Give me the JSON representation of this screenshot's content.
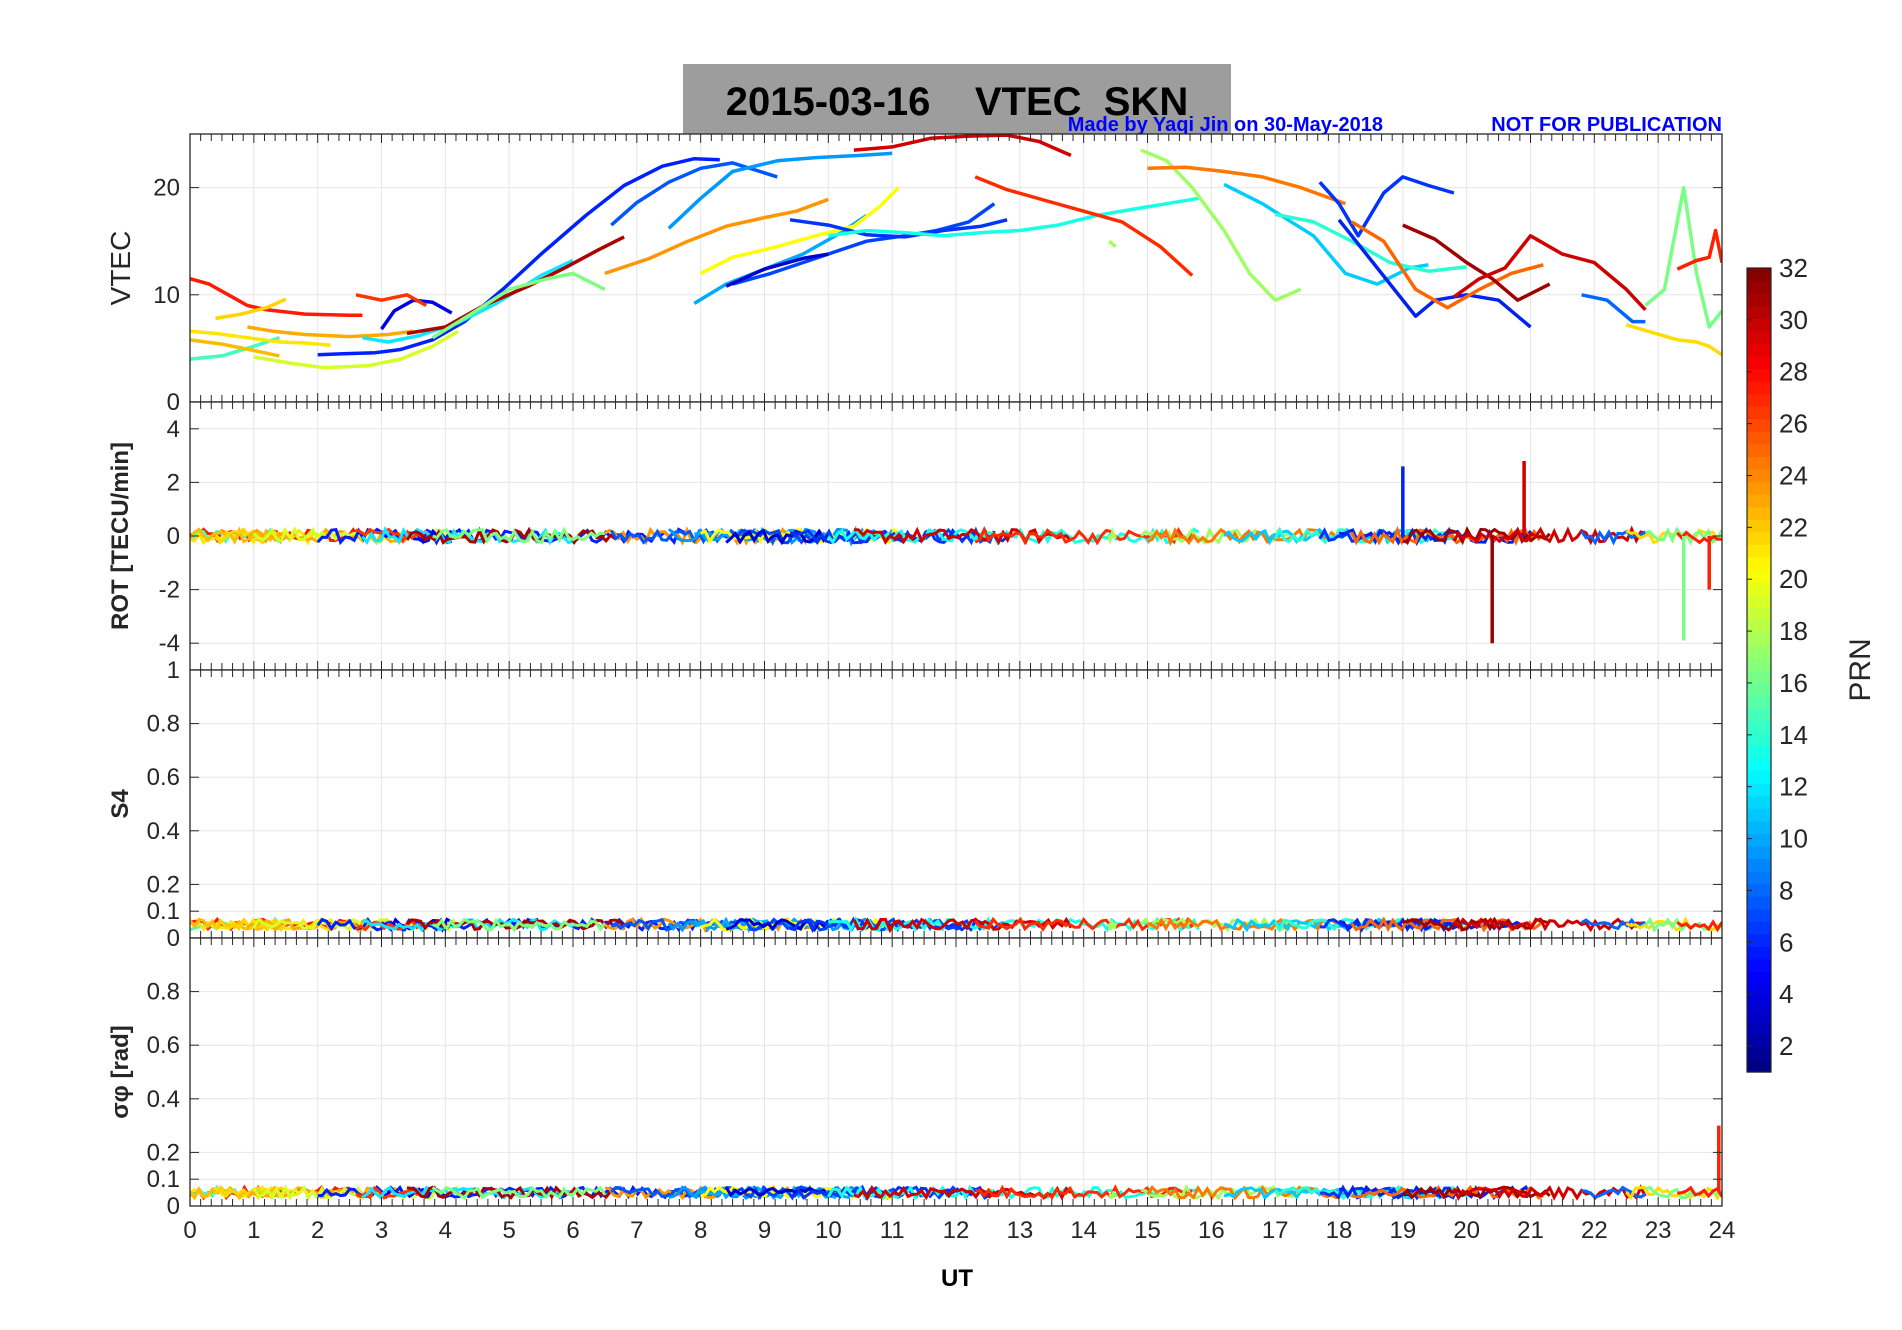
{
  "figure": {
    "title": "2015-03-16    VTEC  SKN",
    "credit": "Made by Yaqi Jin on 30-May-2018",
    "notice": "NOT FOR PUBLICATION",
    "title_bg": "#9d9d9d",
    "credit_color": "#0000ff"
  },
  "chart_data": [
    {
      "type": "line",
      "panel": "VTEC",
      "xlabel": "",
      "ylabel": "VTEC",
      "xlim": [
        0,
        24
      ],
      "ylim": [
        0,
        25
      ],
      "yticks": [
        "0",
        "10",
        "20"
      ],
      "ytick_values": [
        0,
        10,
        20
      ],
      "grid": true,
      "series": [
        {
          "prn": 29,
          "color": "#ff1a00",
          "x": [
            0,
            0.3,
            0.6,
            0.9,
            1.2,
            1.8,
            2.5,
            2.7
          ],
          "y": [
            11.5,
            11,
            10,
            9,
            8.6,
            8.2,
            8.1,
            8.1
          ]
        },
        {
          "prn": 14,
          "color": "#41ffbe",
          "x": [
            0,
            0.5,
            1.0,
            1.4
          ],
          "y": [
            4,
            4.3,
            5.2,
            6
          ]
        },
        {
          "prn": 19,
          "color": "#ffe600",
          "x": [
            0,
            0.4,
            0.9,
            1.4,
            1.8,
            2.2
          ],
          "y": [
            6.6,
            6.4,
            6.0,
            5.6,
            5.5,
            5.3
          ]
        },
        {
          "prn": 21,
          "color": "#ffbb00",
          "x": [
            0,
            0.5,
            1.0,
            1.4
          ],
          "y": [
            5.8,
            5.4,
            4.8,
            4.3
          ]
        },
        {
          "prn": 20,
          "color": "#ffd400",
          "x": [
            0.4,
            0.8,
            1.2,
            1.5
          ],
          "y": [
            7.8,
            8.2,
            8.8,
            9.6
          ]
        },
        {
          "prn": 22,
          "color": "#ffaa00",
          "x": [
            0.9,
            1.3,
            1.8,
            2.5,
            3.1,
            3.5
          ],
          "y": [
            7.0,
            6.6,
            6.3,
            6.1,
            6.3,
            6.6
          ]
        },
        {
          "prn": 18,
          "color": "#d4ff28",
          "x": [
            1.0,
            1.6,
            2.1,
            2.8,
            3.3,
            3.8,
            4.2
          ],
          "y": [
            4.2,
            3.6,
            3.2,
            3.4,
            4.0,
            5.2,
            6.6
          ]
        },
        {
          "prn": 4,
          "color": "#0020ff",
          "x": [
            2.0,
            2.4,
            2.9,
            3.3,
            3.8,
            4.3,
            4.9,
            5.5,
            6.2,
            6.8,
            7.4,
            7.9,
            8.3
          ],
          "y": [
            4.4,
            4.5,
            4.6,
            4.9,
            5.8,
            7.5,
            10.5,
            13.8,
            17.4,
            20.2,
            22.0,
            22.7,
            22.6
          ]
        },
        {
          "prn": 3,
          "color": "#0000e6",
          "x": [
            3.0,
            3.2,
            3.5,
            3.8,
            4.1
          ],
          "y": [
            6.8,
            8.5,
            9.5,
            9.3,
            8.3
          ]
        },
        {
          "prn": 28,
          "color": "#ff3300",
          "x": [
            2.6,
            3.0,
            3.4,
            3.7
          ],
          "y": [
            10.0,
            9.5,
            10.0,
            9.0
          ]
        },
        {
          "prn": 12,
          "color": "#10e6ff",
          "x": [
            2.7,
            3.1,
            3.6,
            4.2,
            4.8,
            5.5,
            6.0
          ],
          "y": [
            6.0,
            5.6,
            6.2,
            7.4,
            9.2,
            11.8,
            13.2
          ]
        },
        {
          "prn": 31,
          "color": "#af0000",
          "x": [
            3.4,
            4.0,
            4.6,
            5.3,
            5.9,
            6.4,
            6.8
          ],
          "y": [
            6.4,
            7.0,
            9.0,
            10.8,
            12.6,
            14.2,
            15.4
          ]
        },
        {
          "prn": 16,
          "color": "#7fff80",
          "x": [
            3.8,
            4.4,
            5.0,
            5.6,
            6.0,
            6.5
          ],
          "y": [
            6.0,
            8.2,
            10.5,
            11.5,
            12.0,
            10.5
          ]
        },
        {
          "prn": 23,
          "color": "#ff9500",
          "x": [
            6.5,
            7.2,
            7.8,
            8.4,
            9.0,
            9.5,
            10.0
          ],
          "y": [
            12.0,
            13.4,
            15.0,
            16.4,
            17.2,
            17.8,
            18.9
          ]
        },
        {
          "prn": 6,
          "color": "#0057ff",
          "x": [
            6.6,
            7.0,
            7.5,
            8.0,
            8.5,
            9.2
          ],
          "y": [
            16.5,
            18.6,
            20.5,
            21.8,
            22.3,
            21.0
          ]
        },
        {
          "prn": 9,
          "color": "#0099ff",
          "x": [
            7.5,
            8.0,
            8.5,
            9.2,
            9.8,
            10.5,
            11.0
          ],
          "y": [
            16.2,
            19.0,
            21.5,
            22.5,
            22.8,
            23.0,
            23.2
          ]
        },
        {
          "prn": 10,
          "color": "#00aaff",
          "x": [
            7.9,
            8.4,
            9.0,
            9.6,
            10.2,
            10.6
          ],
          "y": [
            9.2,
            11.0,
            12.4,
            13.8,
            15.8,
            17.4
          ]
        },
        {
          "prn": 19,
          "color": "#ffff00",
          "x": [
            8.0,
            8.5,
            9.2,
            9.8,
            10.4,
            10.8,
            11.1
          ],
          "y": [
            12.0,
            13.5,
            14.5,
            15.5,
            16.4,
            18.2,
            20.0
          ]
        },
        {
          "prn": 7,
          "color": "#0044ff",
          "x": [
            8.5,
            9.1,
            9.7,
            10.1,
            10.6,
            11.2,
            11.7,
            12.2,
            12.6
          ],
          "y": [
            11.0,
            12.0,
            13.2,
            14.0,
            15.0,
            15.5,
            16.0,
            16.8,
            18.5
          ]
        },
        {
          "prn": 2,
          "color": "#0000cc",
          "x": [
            8.4,
            9.0,
            9.6,
            10.0
          ],
          "y": [
            10.8,
            12.4,
            13.4,
            13.8
          ]
        },
        {
          "prn": 5,
          "color": "#0033ff",
          "x": [
            9.4,
            10.0,
            10.6,
            11.2,
            11.8,
            12.4,
            12.8
          ],
          "y": [
            17.0,
            16.5,
            15.6,
            15.4,
            16.0,
            16.4,
            17.0
          ]
        },
        {
          "prn": 13,
          "color": "#19ffe6",
          "x": [
            10.0,
            10.6,
            11.2,
            11.8,
            12.4,
            13.0,
            13.6,
            14.2,
            14.8,
            15.3,
            15.8
          ],
          "y": [
            15.5,
            16.0,
            15.8,
            15.5,
            15.8,
            16.0,
            16.5,
            17.4,
            18.0,
            18.5,
            19.0
          ]
        },
        {
          "prn": 30,
          "color": "#d20000",
          "x": [
            10.4,
            11.0,
            11.6,
            12.2,
            12.8,
            13.3,
            13.8
          ],
          "y": [
            23.5,
            23.8,
            24.6,
            24.8,
            24.9,
            24.3,
            23.0
          ]
        },
        {
          "prn": 28,
          "color": "#ff2b00",
          "x": [
            12.3,
            12.8,
            13.4,
            14.0,
            14.6,
            15.2,
            15.7
          ],
          "y": [
            21.0,
            19.8,
            18.8,
            17.8,
            16.8,
            14.5,
            11.8
          ]
        },
        {
          "prn": 17,
          "color": "#a5ff5a",
          "x": [
            14.4,
            14.5
          ],
          "y": [
            15.0,
            14.5
          ]
        },
        {
          "prn": 17,
          "color": "#a0ff60",
          "x": [
            14.9,
            15.3,
            15.7,
            16.2,
            16.6,
            17.0,
            17.4
          ],
          "y": [
            23.5,
            22.5,
            20.0,
            16.0,
            12.0,
            9.5,
            10.5
          ]
        },
        {
          "prn": 24,
          "color": "#ff7700",
          "x": [
            15.0,
            15.6,
            16.2,
            16.8,
            17.4,
            18.1
          ],
          "y": [
            21.8,
            21.9,
            21.5,
            21.0,
            20.0,
            18.5
          ]
        },
        {
          "prn": 11,
          "color": "#00ccff",
          "x": [
            16.2,
            16.8,
            17.2,
            17.6,
            18.1,
            18.6,
            19.1,
            19.4
          ],
          "y": [
            20.3,
            18.5,
            17.0,
            15.5,
            12.0,
            11.0,
            12.5,
            12.8
          ]
        },
        {
          "prn": 15,
          "color": "#2affd4",
          "x": [
            17.0,
            17.6,
            18.2,
            18.8,
            19.4,
            20.0
          ],
          "y": [
            17.5,
            16.8,
            15.0,
            13.0,
            12.2,
            12.6
          ]
        },
        {
          "prn": 5,
          "color": "#0033ff",
          "x": [
            17.7,
            18.0,
            18.3,
            18.7,
            19.0,
            19.4,
            19.8
          ],
          "y": [
            20.5,
            18.5,
            15.5,
            19.5,
            21.0,
            20.2,
            19.5
          ]
        },
        {
          "prn": 3,
          "color": "#0022ee",
          "x": [
            18.0,
            18.4,
            18.8,
            19.2,
            19.5,
            20.0,
            20.5,
            21.0
          ],
          "y": [
            17.0,
            14.0,
            11.0,
            8.0,
            9.5,
            10.0,
            9.5,
            7.0
          ]
        },
        {
          "prn": 25,
          "color": "#ff6600",
          "x": [
            18.2,
            18.7,
            19.2,
            19.7,
            20.2,
            20.7,
            21.2
          ],
          "y": [
            16.8,
            15.0,
            10.5,
            8.8,
            10.5,
            12.0,
            12.8
          ]
        },
        {
          "prn": 31,
          "color": "#a00000",
          "x": [
            19.0,
            19.5,
            20.0,
            20.4,
            20.8,
            21.3
          ],
          "y": [
            16.5,
            15.2,
            13.0,
            11.5,
            9.5,
            11.0
          ]
        },
        {
          "prn": 30,
          "color": "#d00000",
          "x": [
            19.8,
            20.2,
            20.6,
            21.0,
            21.5,
            22.0,
            22.5,
            22.8
          ],
          "y": [
            9.8,
            11.5,
            12.5,
            15.5,
            13.8,
            13.0,
            10.5,
            8.6
          ]
        },
        {
          "prn": 8,
          "color": "#0066ff",
          "x": [
            21.8,
            22.2,
            22.6,
            22.8
          ],
          "y": [
            10.0,
            9.5,
            7.5,
            7.5
          ]
        },
        {
          "prn": 20,
          "color": "#ffdd00",
          "x": [
            22.5,
            22.9,
            23.3,
            23.6,
            23.8,
            24.0
          ],
          "y": [
            7.2,
            6.5,
            5.8,
            5.6,
            5.2,
            4.4
          ]
        },
        {
          "prn": 16,
          "color": "#7aff85",
          "x": [
            22.8,
            23.1,
            23.4,
            23.6,
            23.8,
            24.0
          ],
          "y": [
            9.0,
            10.5,
            20.0,
            12.0,
            7.0,
            8.5
          ]
        },
        {
          "prn": 28,
          "color": "#ff2000",
          "x": [
            23.3,
            23.6,
            23.8,
            23.9,
            24.0
          ],
          "y": [
            12.4,
            13.2,
            13.5,
            16.0,
            13.0
          ]
        }
      ]
    },
    {
      "type": "line",
      "panel": "ROT",
      "xlabel": "",
      "ylabel": "ROT [TECU/min]",
      "xlim": [
        0,
        24
      ],
      "ylim": [
        -5,
        5
      ],
      "yticks": [
        "-4",
        "-2",
        "0",
        "2",
        "4"
      ],
      "ytick_values": [
        -4,
        -2,
        0,
        2,
        4
      ],
      "grid": true,
      "note": "noise band around 0 for all PRNs, roughly ±0.3 TECU/min",
      "spikes": [
        {
          "x": 19.0,
          "y": 2.6,
          "color": "#0022ee"
        },
        {
          "x": 20.4,
          "y": -4.0,
          "color": "#a00000"
        },
        {
          "x": 20.9,
          "y": 2.8,
          "color": "#d00000"
        },
        {
          "x": 23.4,
          "y": -3.9,
          "color": "#7aff85"
        },
        {
          "x": 23.8,
          "y": -2.0,
          "color": "#ff2000"
        }
      ]
    },
    {
      "type": "line",
      "panel": "S4",
      "xlabel": "",
      "ylabel": "S4",
      "xlim": [
        0,
        24
      ],
      "ylim": [
        0,
        1
      ],
      "yticks": [
        "0",
        "0.1",
        "0.2",
        "0.4",
        "0.6",
        "0.8",
        "1"
      ],
      "ytick_values": [
        0,
        0.1,
        0.2,
        0.4,
        0.6,
        0.8,
        1
      ],
      "grid": true,
      "note": "all PRNs near 0.05"
    },
    {
      "type": "line",
      "panel": "sigma_phi",
      "xlabel": "UT",
      "ylabel": "σφ [rad]",
      "xlim": [
        0,
        24
      ],
      "ylim": [
        0,
        1
      ],
      "yticks": [
        "0",
        "0.1",
        "0.2",
        "0.4",
        "0.6",
        "0.8"
      ],
      "ytick_values": [
        0,
        0.1,
        0.2,
        0.4,
        0.6,
        0.8
      ],
      "xticks": [
        "0",
        "1",
        "2",
        "3",
        "4",
        "5",
        "6",
        "7",
        "8",
        "9",
        "10",
        "11",
        "12",
        "13",
        "14",
        "15",
        "16",
        "17",
        "18",
        "19",
        "20",
        "21",
        "22",
        "23",
        "24"
      ],
      "grid": true,
      "note": "all PRNs near 0.05, spike to 0.3 near 24 UT"
    },
    {
      "type": "colorbar",
      "label": "PRN",
      "ticks": [
        "2",
        "4",
        "6",
        "8",
        "10",
        "12",
        "14",
        "16",
        "18",
        "20",
        "22",
        "24",
        "26",
        "28",
        "30",
        "32"
      ],
      "tick_values": [
        2,
        4,
        6,
        8,
        10,
        12,
        14,
        16,
        18,
        20,
        22,
        24,
        26,
        28,
        30,
        32
      ],
      "range": [
        1,
        32
      ],
      "colormap": "jet"
    }
  ]
}
